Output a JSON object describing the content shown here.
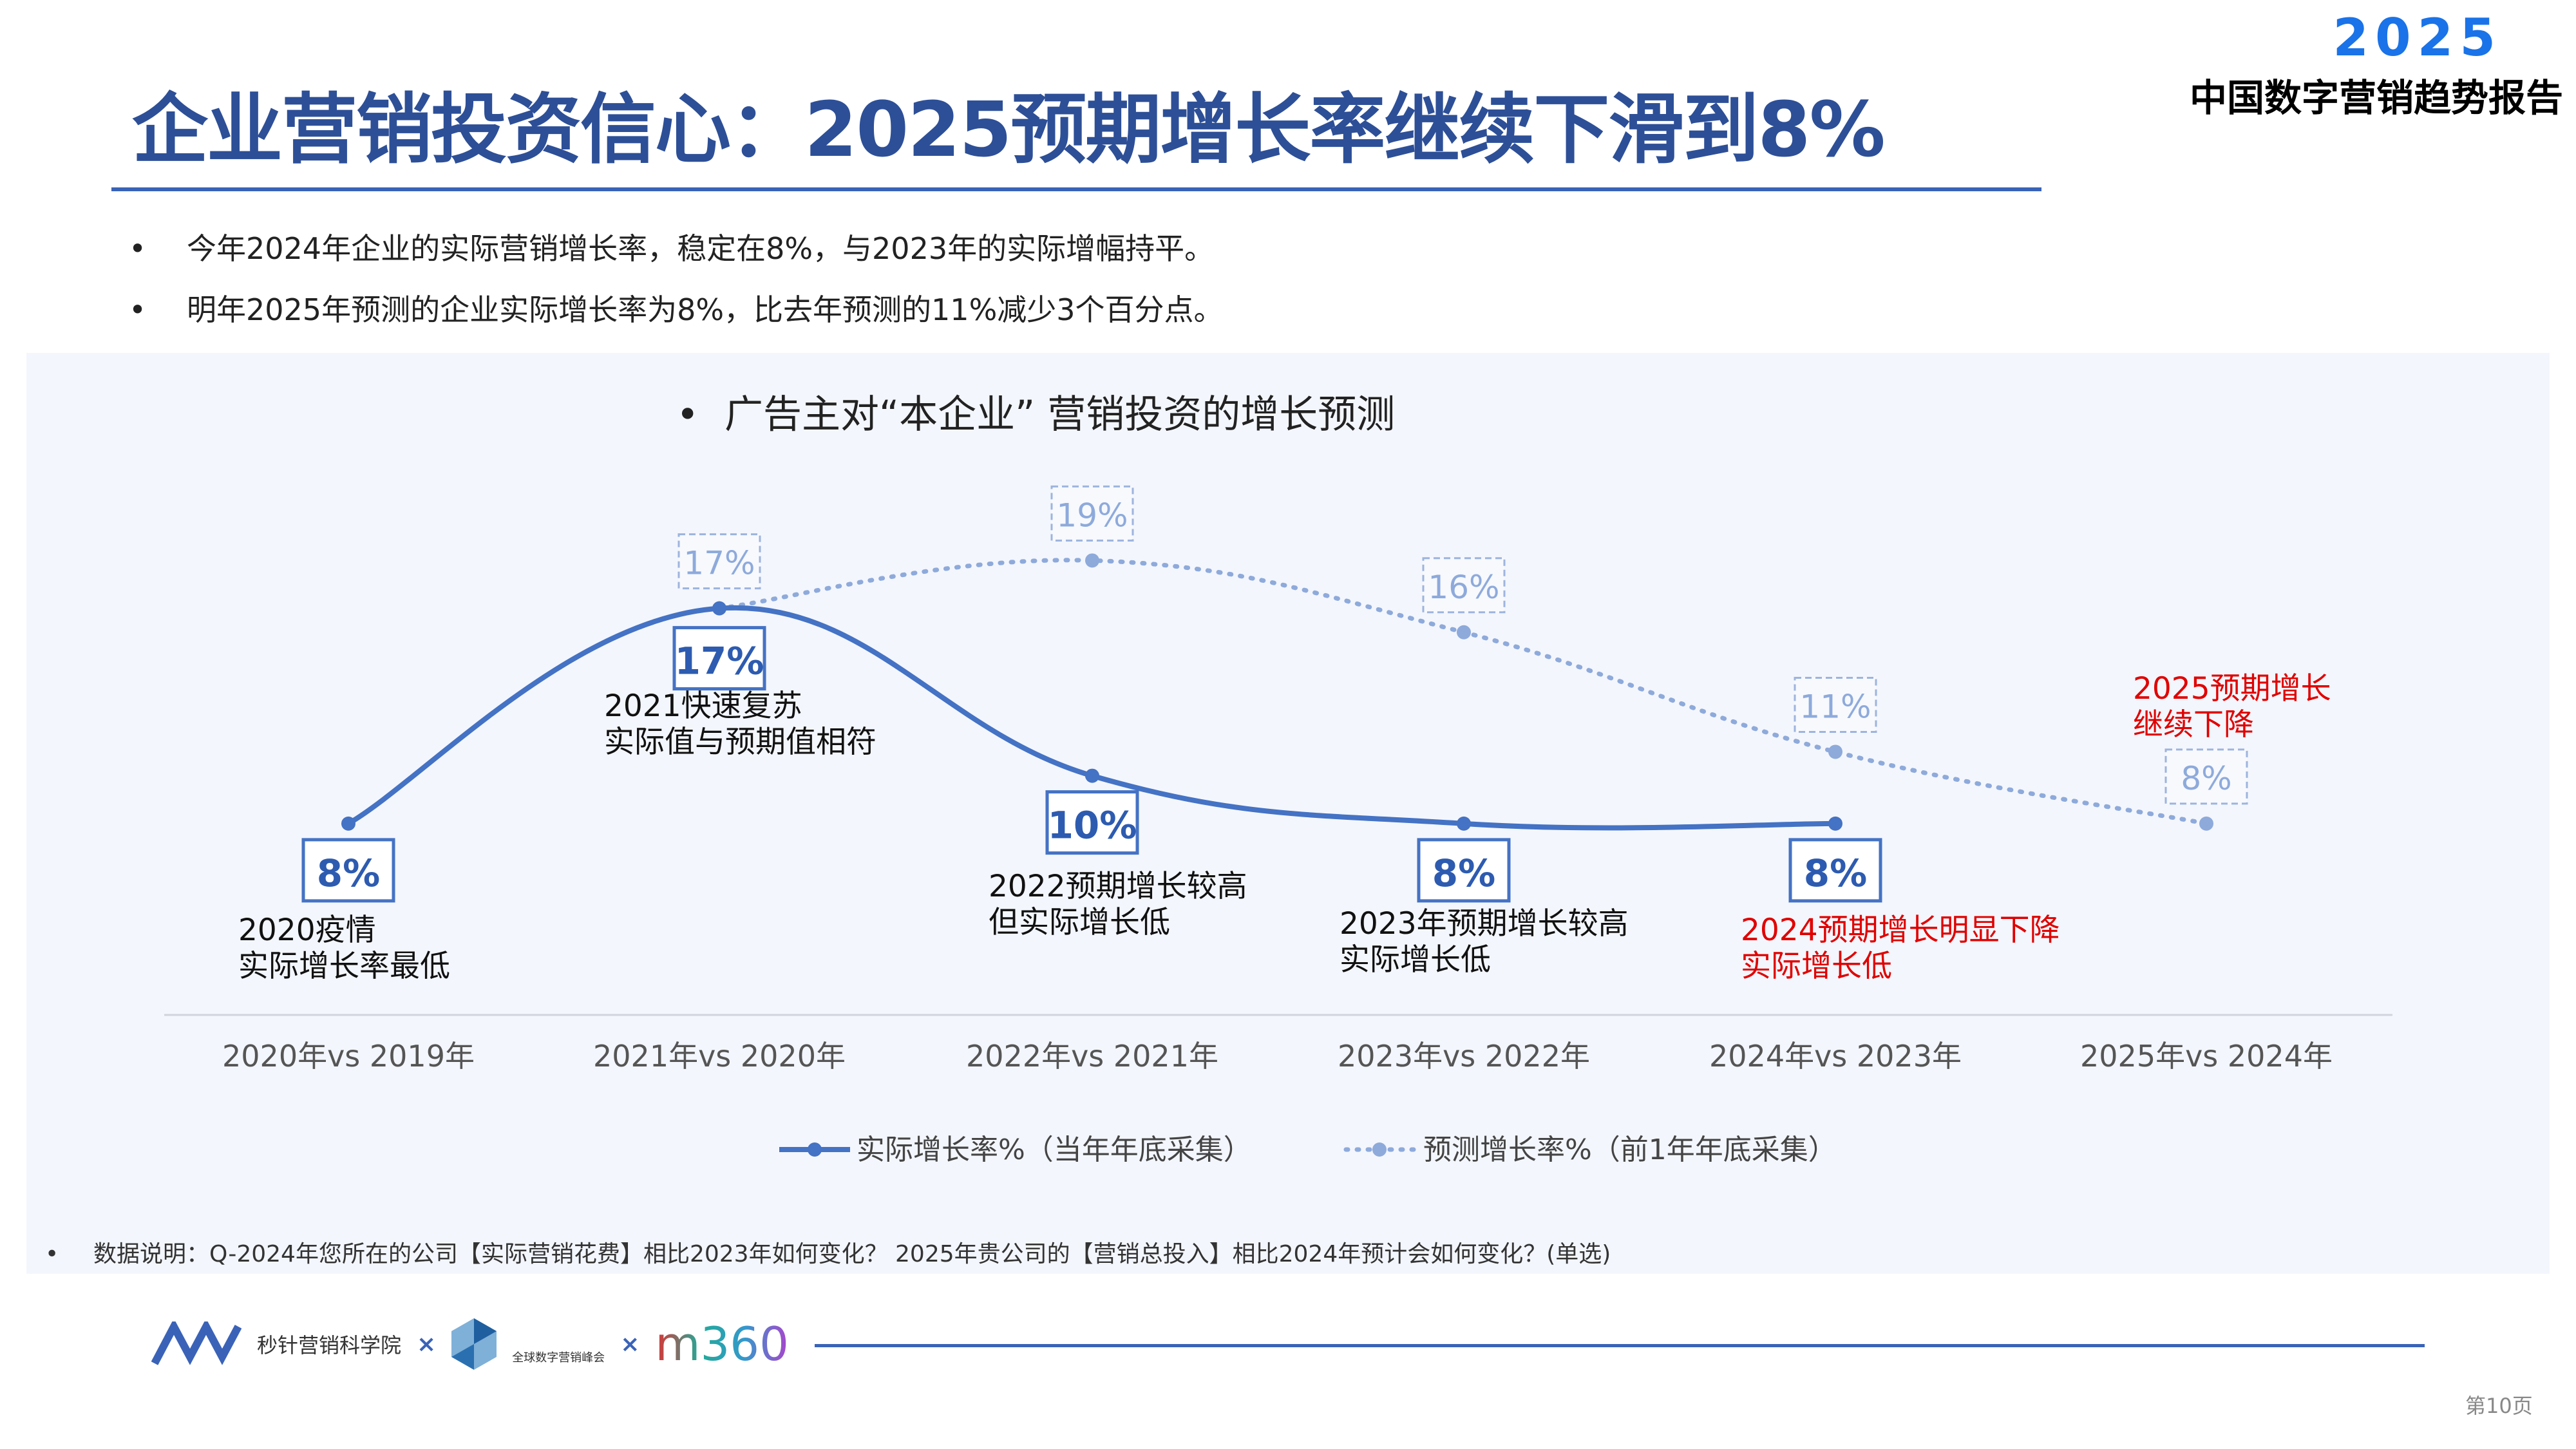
{
  "header": {
    "title": "企业营销投资信心：2025预期增长率继续下滑到8%",
    "brand_year": "2025",
    "brand_name": "中国数字营销趋势报告"
  },
  "bullets": [
    "今年2024年企业的实际营销增长率，稳定在8%，与2023年的实际增幅持平。",
    "明年2025年预测的企业实际增长率为8%，比去年预测的11%减少3个百分点。"
  ],
  "chart_subtitle": "广告主对“本企业” 营销投资的增长预测",
  "chart_data": {
    "type": "line",
    "categories": [
      "2020年vs 2019年",
      "2021年vs 2020年",
      "2022年vs 2021年",
      "2023年vs 2022年",
      "2024年vs 2023年",
      "2025年vs 2024年"
    ],
    "ylim": [
      0,
      20
    ],
    "grid": false,
    "legend_placement": "bottom",
    "series": [
      {
        "name": "实际增长率%（当年年底采集）",
        "values": [
          8,
          17,
          10,
          8,
          8,
          null
        ],
        "labels": [
          "8%",
          "17%",
          "10%",
          "8%",
          "8%",
          null
        ],
        "color": "#4472c4",
        "style": "solid"
      },
      {
        "name": "预测增长率%（前1年年底采集）",
        "values": [
          null,
          17,
          19,
          16,
          11,
          8
        ],
        "labels": [
          null,
          "17%",
          "19%",
          "16%",
          "11%",
          "8%"
        ],
        "color": "#8eaadb",
        "style": "dotted"
      }
    ],
    "annotations": [
      {
        "category": 0,
        "lines": [
          "2020疫情",
          "实际增长率最低"
        ],
        "color": "#111111"
      },
      {
        "category": 1,
        "lines": [
          "2021快速复苏",
          "实际值与预期值相符"
        ],
        "color": "#111111"
      },
      {
        "category": 2,
        "lines": [
          "2022预期增长较高",
          "但实际增长低"
        ],
        "color": "#111111"
      },
      {
        "category": 3,
        "lines": [
          "2023年预期增长较高",
          "实际增长低"
        ],
        "color": "#111111"
      },
      {
        "category": 4,
        "lines": [
          "2024预期增长明显下降",
          "实际增长低"
        ],
        "color": "#e00000"
      },
      {
        "category": 5,
        "lines": [
          "2025预期增长",
          "继续下降"
        ],
        "color": "#e00000"
      }
    ]
  },
  "footnote": "数据说明：Q-2024年您所在的公司【实际营销花费】相比2023年如何变化？    2025年贵公司的【营销总投入】相比2024年预计会如何变化？(单选)",
  "logos": {
    "logo1": "秒针营销科学院",
    "sep": "×",
    "logo2": "全球数字营销峰会",
    "logo3": "m360"
  },
  "page": "第10页"
}
